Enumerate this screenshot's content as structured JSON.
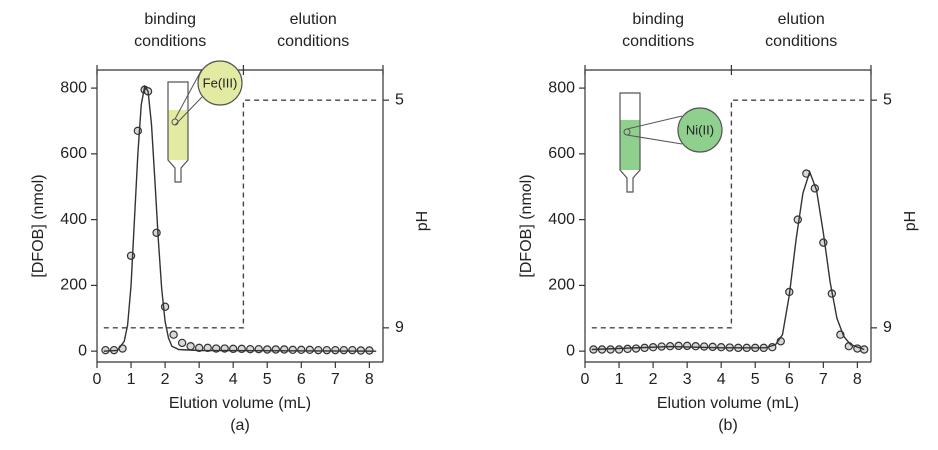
{
  "chart_data": [
    {
      "type": "scatter",
      "panel_label": "(a)",
      "x_label": "Elution volume (mL)",
      "y_label": "[DFOB] (nmol)",
      "y2_label": "pH",
      "phase_labels": [
        [
          "binding",
          "conditions"
        ],
        [
          "elution",
          "conditions"
        ]
      ],
      "inset": {
        "label": "Fe(III)",
        "color": "#e3eba2"
      },
      "xlim": [
        0,
        8.4
      ],
      "xticks": [
        0,
        1,
        2,
        3,
        4,
        5,
        6,
        7,
        8
      ],
      "ylim": [
        -33,
        855
      ],
      "yticks": [
        0,
        200,
        400,
        600,
        800
      ],
      "y2lim": [
        9.6,
        4.47
      ],
      "y2ticks": [
        5,
        9
      ],
      "series": [
        {
          "style": "markers",
          "color": "#333333",
          "x": [
            0.25,
            0.5,
            0.75,
            1.0,
            1.2,
            1.4,
            1.5,
            1.75,
            2.0,
            2.25,
            2.5,
            2.75,
            3.0,
            3.25,
            3.5,
            3.75,
            4.0,
            4.25,
            4.5,
            4.75,
            5.0,
            5.25,
            5.5,
            5.75,
            6.0,
            6.25,
            6.5,
            6.75,
            7.0,
            7.25,
            7.5,
            7.75,
            8.0
          ],
          "values": [
            3,
            3,
            8,
            290,
            670,
            795,
            790,
            360,
            135,
            50,
            25,
            15,
            10,
            10,
            8,
            8,
            7,
            7,
            6,
            6,
            5,
            5,
            5,
            4,
            4,
            4,
            3,
            3,
            3,
            3,
            3,
            2,
            2
          ]
        },
        {
          "style": "line",
          "color": "#333333",
          "x": [
            0.2,
            0.6,
            0.8,
            0.9,
            1.0,
            1.1,
            1.2,
            1.3,
            1.4,
            1.5,
            1.6,
            1.7,
            1.8,
            1.9,
            2.0,
            2.1,
            2.2,
            2.4,
            3.0,
            8.2
          ],
          "values": [
            0,
            2,
            30,
            80,
            200,
            400,
            600,
            750,
            805,
            790,
            690,
            520,
            340,
            190,
            90,
            40,
            15,
            5,
            2,
            0
          ]
        },
        {
          "style": "dashed",
          "axis": "y2",
          "color": "#444444",
          "x": [
            0.2,
            4.3,
            4.3,
            8.2
          ],
          "values": [
            9,
            9,
            5,
            5
          ]
        }
      ]
    },
    {
      "type": "scatter",
      "panel_label": "(b)",
      "x_label": "Elution volume (mL)",
      "y_label": "[DFOB] (nmol)",
      "y2_label": "pH",
      "phase_labels": [
        [
          "binding",
          "conditions"
        ],
        [
          "elution",
          "conditions"
        ]
      ],
      "inset": {
        "label": "Ni(II)",
        "color": "#8fd08e"
      },
      "xlim": [
        0,
        8.4
      ],
      "xticks": [
        0,
        1,
        2,
        3,
        4,
        5,
        6,
        7,
        8
      ],
      "ylim": [
        -33,
        855
      ],
      "yticks": [
        0,
        200,
        400,
        600,
        800
      ],
      "y2lim": [
        9.6,
        4.47
      ],
      "y2ticks": [
        5,
        9
      ],
      "series": [
        {
          "style": "markers",
          "color": "#333333",
          "x": [
            0.25,
            0.5,
            0.75,
            1.0,
            1.25,
            1.5,
            1.75,
            2.0,
            2.25,
            2.5,
            2.75,
            3.0,
            3.25,
            3.5,
            3.75,
            4.0,
            4.25,
            4.5,
            4.75,
            5.0,
            5.25,
            5.5,
            5.75,
            6.0,
            6.25,
            6.5,
            6.75,
            7.0,
            7.25,
            7.5,
            7.75,
            8.0,
            8.2
          ],
          "values": [
            5,
            5,
            5,
            5,
            7,
            8,
            10,
            12,
            14,
            15,
            16,
            16,
            15,
            14,
            13,
            12,
            11,
            10,
            10,
            10,
            10,
            12,
            30,
            180,
            400,
            540,
            495,
            330,
            175,
            50,
            15,
            8,
            5
          ]
        },
        {
          "style": "line",
          "color": "#333333",
          "x": [
            0.2,
            2.5,
            4.0,
            5.3,
            5.6,
            5.8,
            6.0,
            6.2,
            6.4,
            6.6,
            6.8,
            7.0,
            7.2,
            7.4,
            7.6,
            7.8,
            8.2
          ],
          "values": [
            5,
            14,
            10,
            10,
            20,
            50,
            170,
            340,
            480,
            545,
            490,
            360,
            210,
            100,
            45,
            20,
            5
          ]
        },
        {
          "style": "dashed",
          "axis": "y2",
          "color": "#444444",
          "x": [
            0.2,
            4.3,
            4.3,
            8.2
          ],
          "values": [
            9,
            9,
            5,
            5
          ]
        }
      ]
    }
  ]
}
